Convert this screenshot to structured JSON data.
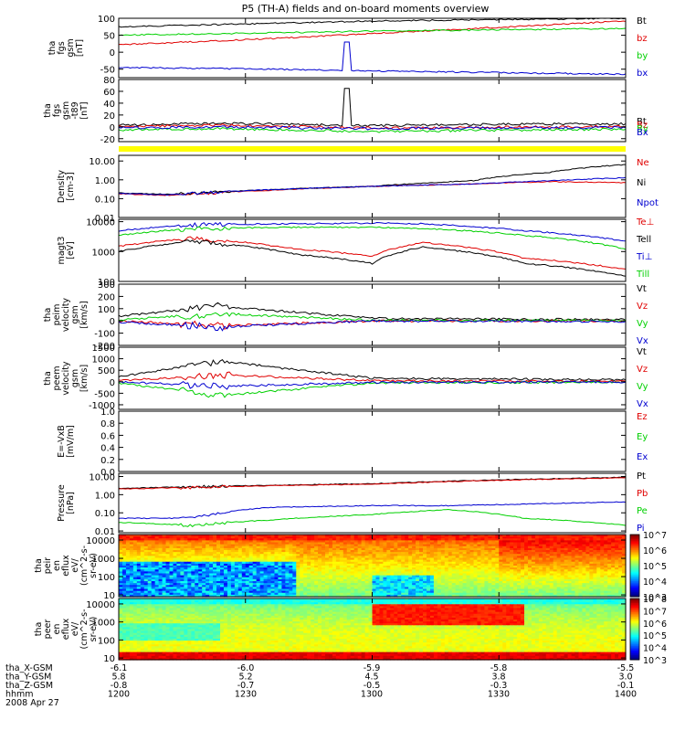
{
  "title": "P5 (TH-A) fields and on-board moments overview",
  "colors": {
    "black": "#000000",
    "red": "#e00000",
    "green": "#00d000",
    "blue": "#0000d0",
    "navy": "#000080",
    "yellow": "#ffff00"
  },
  "chart_data": [
    {
      "type": "line",
      "ylabel": [
        "tha",
        "fgs",
        "gsm",
        "[nT]"
      ],
      "ylim": [
        -75,
        100
      ],
      "yscale": "linear",
      "yticks": [
        {
          "v": 100,
          "label": "100"
        },
        {
          "v": 50,
          "label": "50"
        },
        {
          "v": 0,
          "label": "0"
        },
        {
          "v": -50,
          "label": "-50"
        }
      ],
      "series": [
        {
          "name": "Bt",
          "color": "#000000",
          "x": [
            0,
            0.3,
            0.5,
            1
          ],
          "values": [
            75,
            85,
            92,
            100
          ]
        },
        {
          "name": "bz",
          "color": "#e00000",
          "x": [
            0,
            0.3,
            0.5,
            1
          ],
          "values": [
            22,
            40,
            55,
            92
          ]
        },
        {
          "name": "by",
          "color": "#00d000",
          "x": [
            0,
            0.3,
            0.5,
            1
          ],
          "values": [
            50,
            57,
            62,
            70
          ]
        },
        {
          "name": "bx",
          "color": "#0000d0",
          "x": [
            0,
            0.3,
            0.5,
            1
          ],
          "values": [
            -45,
            -50,
            -55,
            -65
          ]
        }
      ]
    },
    {
      "type": "line",
      "ylabel": [
        "tha",
        "fgs",
        "gsm",
        "-t89",
        "[nT]"
      ],
      "ylim": [
        -25,
        80
      ],
      "yscale": "linear",
      "yticks": [
        {
          "v": 80,
          "label": "80"
        },
        {
          "v": 60,
          "label": "60"
        },
        {
          "v": 40,
          "label": "40"
        },
        {
          "v": 20,
          "label": "20"
        },
        {
          "v": 0,
          "label": "0"
        },
        {
          "v": -20,
          "label": "-20"
        }
      ],
      "series": [
        {
          "name": "Bt",
          "color": "#000000",
          "x": [
            0,
            0.2,
            0.5,
            0.7,
            1
          ],
          "values": [
            3,
            6,
            2,
            4,
            5
          ]
        },
        {
          "name": "Bz",
          "color": "#e00000",
          "x": [
            0,
            0.2,
            0.5,
            0.7,
            1
          ],
          "values": [
            1,
            3,
            -2,
            -1,
            1
          ]
        },
        {
          "name": "By",
          "color": "#00d000",
          "x": [
            0,
            0.2,
            0.5,
            0.7,
            1
          ],
          "values": [
            -5,
            -3,
            -8,
            -6,
            -4
          ]
        },
        {
          "name": "Bx",
          "color": "#0000d0",
          "x": [
            0,
            0.2,
            0.5,
            0.7,
            1
          ],
          "values": [
            -2,
            0,
            -3,
            -2,
            -1
          ]
        }
      ]
    },
    {
      "type": "line",
      "ylabel": [
        "Density",
        "[cm-3]"
      ],
      "ylim": [
        0.01,
        20
      ],
      "yscale": "log",
      "yticks": [
        {
          "v": 10,
          "label": "10.00"
        },
        {
          "v": 1,
          "label": "1.00"
        },
        {
          "v": 0.1,
          "label": "0.10"
        },
        {
          "v": 0.01,
          "label": "0.01"
        }
      ],
      "series": [
        {
          "name": "Ne",
          "color": "#e00000",
          "x": [
            0,
            0.1,
            0.3,
            0.5,
            0.7,
            0.85,
            1
          ],
          "values": [
            0.18,
            0.15,
            0.28,
            0.45,
            0.6,
            0.8,
            0.7
          ]
        },
        {
          "name": "Ni",
          "color": "#000000",
          "x": [
            0,
            0.1,
            0.3,
            0.5,
            0.7,
            0.85,
            1
          ],
          "values": [
            0.2,
            0.17,
            0.3,
            0.45,
            0.9,
            2.5,
            6.5
          ]
        },
        {
          "name": "Npot",
          "color": "#0000d0",
          "x": [
            0,
            0.1,
            0.3,
            0.5,
            0.7,
            0.85,
            1
          ],
          "values": [
            0.19,
            0.16,
            0.3,
            0.45,
            0.6,
            0.9,
            1.3
          ]
        }
      ]
    },
    {
      "type": "line",
      "ylabel": [
        "magt3",
        "[eV]"
      ],
      "ylim": [
        100,
        12000
      ],
      "yscale": "log",
      "yticks": [
        {
          "v": 10000,
          "label": "10000"
        },
        {
          "v": 1000,
          "label": "1000"
        },
        {
          "v": 100,
          "label": "100"
        }
      ],
      "series": [
        {
          "name": "Te⊥",
          "color": "#e00000",
          "x": [
            0,
            0.15,
            0.35,
            0.5,
            0.6,
            0.8,
            1
          ],
          "values": [
            1500,
            2800,
            1200,
            700,
            2000,
            600,
            250
          ]
        },
        {
          "name": "Tell",
          "color": "#000000",
          "x": [
            0,
            0.15,
            0.35,
            0.5,
            0.6,
            0.8,
            1
          ],
          "values": [
            1000,
            2200,
            800,
            400,
            1400,
            400,
            150
          ]
        },
        {
          "name": "Ti⊥",
          "color": "#0000d0",
          "x": [
            0,
            0.15,
            0.35,
            0.5,
            0.6,
            0.8,
            1
          ],
          "values": [
            5000,
            8000,
            8500,
            9000,
            8500,
            5000,
            2200
          ]
        },
        {
          "name": "Till",
          "color": "#00d000",
          "x": [
            0,
            0.15,
            0.35,
            0.5,
            0.6,
            0.8,
            1
          ],
          "values": [
            3500,
            6000,
            6500,
            6500,
            6000,
            3500,
            1200
          ]
        }
      ]
    },
    {
      "type": "line",
      "ylabel": [
        "tha",
        "peim",
        "velocity",
        "gsm",
        "[km/s]"
      ],
      "ylim": [
        -200,
        300
      ],
      "yscale": "linear",
      "yticks": [
        {
          "v": 300,
          "label": "300"
        },
        {
          "v": 200,
          "label": "200"
        },
        {
          "v": 100,
          "label": "100"
        },
        {
          "v": 0,
          "label": "0"
        },
        {
          "v": -100,
          "label": "-100"
        },
        {
          "v": -200,
          "label": "-200"
        }
      ],
      "series": [
        {
          "name": "Vt",
          "color": "#000000",
          "x": [
            0,
            0.2,
            0.5,
            1
          ],
          "values": [
            40,
            120,
            20,
            10
          ]
        },
        {
          "name": "Vz",
          "color": "#e00000",
          "x": [
            0,
            0.2,
            0.5,
            1
          ],
          "values": [
            0,
            -40,
            0,
            0
          ]
        },
        {
          "name": "Vy",
          "color": "#00d000",
          "x": [
            0,
            0.2,
            0.5,
            1
          ],
          "values": [
            10,
            60,
            5,
            5
          ]
        },
        {
          "name": "Vx",
          "color": "#0000d0",
          "x": [
            0,
            0.2,
            0.5,
            1
          ],
          "values": [
            -10,
            -50,
            0,
            -5
          ]
        }
      ]
    },
    {
      "type": "line",
      "ylabel": [
        "tha",
        "peem",
        "velocity",
        "gsm",
        "[km/s]"
      ],
      "ylim": [
        -1200,
        1500
      ],
      "yscale": "linear",
      "yticks": [
        {
          "v": 1500,
          "label": "1500"
        },
        {
          "v": 1000,
          "label": "1000"
        },
        {
          "v": 500,
          "label": "500"
        },
        {
          "v": 0,
          "label": "0"
        },
        {
          "v": -500,
          "label": "-500"
        },
        {
          "v": -1000,
          "label": "-1000"
        }
      ],
      "series": [
        {
          "name": "Vt",
          "color": "#000000",
          "x": [
            0,
            0.2,
            0.5,
            1
          ],
          "values": [
            200,
            900,
            150,
            80
          ]
        },
        {
          "name": "Vz",
          "color": "#e00000",
          "x": [
            0,
            0.2,
            0.5,
            1
          ],
          "values": [
            50,
            300,
            50,
            20
          ]
        },
        {
          "name": "Vy",
          "color": "#00d000",
          "x": [
            0,
            0.2,
            0.5,
            1
          ],
          "values": [
            -50,
            -600,
            -50,
            -20
          ]
        },
        {
          "name": "Vx",
          "color": "#0000d0",
          "x": [
            0,
            0.2,
            0.5,
            1
          ],
          "values": [
            0,
            -200,
            -30,
            -10
          ]
        }
      ]
    },
    {
      "type": "line",
      "ylabel": [
        "E=-VxB",
        "[mV/m]"
      ],
      "ylim": [
        0,
        1
      ],
      "yscale": "linear",
      "yticks": [
        {
          "v": 1,
          "label": "1.0"
        },
        {
          "v": 0.8,
          "label": "0.8"
        },
        {
          "v": 0.6,
          "label": "0.6"
        },
        {
          "v": 0.4,
          "label": "0.4"
        },
        {
          "v": 0.2,
          "label": "0.2"
        },
        {
          "v": 0,
          "label": "0.0"
        }
      ],
      "series": [
        {
          "name": "Ez",
          "color": "#e00000",
          "x": [],
          "values": []
        },
        {
          "name": "Ey",
          "color": "#00d000",
          "x": [],
          "values": []
        },
        {
          "name": "Ex",
          "color": "#0000d0",
          "x": [],
          "values": []
        }
      ]
    },
    {
      "type": "line",
      "ylabel": [
        "Pressure",
        "[nPa]"
      ],
      "ylim": [
        0.008,
        15
      ],
      "yscale": "log",
      "yticks": [
        {
          "v": 10,
          "label": "10.00"
        },
        {
          "v": 1,
          "label": "1.00"
        },
        {
          "v": 0.1,
          "label": "0.10"
        },
        {
          "v": 0.01,
          "label": "0.01"
        }
      ],
      "series": [
        {
          "name": "Pt",
          "color": "#000000",
          "x": [
            0,
            0.5,
            1
          ],
          "values": [
            2.2,
            4,
            9
          ]
        },
        {
          "name": "Pb",
          "color": "#e00000",
          "x": [
            0,
            0.5,
            1
          ],
          "values": [
            2,
            3.8,
            8.5
          ]
        },
        {
          "name": "Pe",
          "color": "#00d000",
          "x": [
            0,
            0.15,
            0.3,
            0.5,
            0.65,
            0.8,
            1
          ],
          "values": [
            0.03,
            0.02,
            0.04,
            0.08,
            0.15,
            0.05,
            0.02
          ]
        },
        {
          "name": "Pi",
          "color": "#0000d0",
          "x": [
            0,
            0.15,
            0.3,
            0.5,
            0.65,
            0.8,
            1
          ],
          "values": [
            0.05,
            0.05,
            0.2,
            0.25,
            0.25,
            0.3,
            0.4
          ]
        }
      ]
    },
    {
      "type": "heatmap",
      "ylabel": [
        "tha",
        "peir",
        "en",
        "eflux",
        "eV/",
        "(cm^2-s-",
        "sr-eV)"
      ],
      "ylim": [
        8,
        20000
      ],
      "yscale": "log",
      "yticks": [
        {
          "v": 10000,
          "label": "10000"
        },
        {
          "v": 1000,
          "label": "1000"
        },
        {
          "v": 100,
          "label": "100"
        },
        {
          "v": 10,
          "label": "10"
        }
      ],
      "colorbar": {
        "min_exp": 3,
        "max_exp": 7,
        "labels": [
          {
            "e": 7,
            "label": "10^7"
          },
          {
            "e": 6,
            "label": "10^6"
          },
          {
            "e": 5,
            "label": "10^5"
          },
          {
            "e": 4,
            "label": "10^4"
          },
          {
            "e": 3,
            "label": "10^3"
          }
        ]
      }
    },
    {
      "type": "heatmap",
      "ylabel": [
        "tha",
        "peer",
        "en",
        "eflux",
        "eV/",
        "(cm^2-s-",
        "sr-eV)"
      ],
      "ylim": [
        8,
        20000
      ],
      "yscale": "log",
      "yticks": [
        {
          "v": 10000,
          "label": "10000"
        },
        {
          "v": 1000,
          "label": "1000"
        },
        {
          "v": 100,
          "label": "100"
        },
        {
          "v": 10,
          "label": "10"
        }
      ],
      "colorbar": {
        "min_exp": 3,
        "max_exp": 8,
        "labels": [
          {
            "e": 8,
            "label": "10^8"
          },
          {
            "e": 7,
            "label": "10^7"
          },
          {
            "e": 6,
            "label": "10^6"
          },
          {
            "e": 5,
            "label": "10^5"
          },
          {
            "e": 4,
            "label": "10^4"
          },
          {
            "e": 3,
            "label": "10^3"
          }
        ]
      }
    }
  ],
  "xaxis": {
    "rows": [
      {
        "label": "tha_X-GSM",
        "values": [
          "-6.1",
          "-6.0",
          "-5.9",
          "-5.8",
          "-5.5"
        ]
      },
      {
        "label": "tha_Y-GSM",
        "values": [
          "5.8",
          "5.2",
          "4.5",
          "3.8",
          "3.0"
        ]
      },
      {
        "label": "tha_Z-GSM",
        "values": [
          "-0.8",
          "-0.7",
          "-0.5",
          "-0.3",
          "-0.1"
        ]
      },
      {
        "label": "hhmm",
        "values": [
          "1200",
          "1230",
          "1300",
          "1330",
          "1400"
        ]
      }
    ],
    "date": "2008 Apr 27"
  }
}
